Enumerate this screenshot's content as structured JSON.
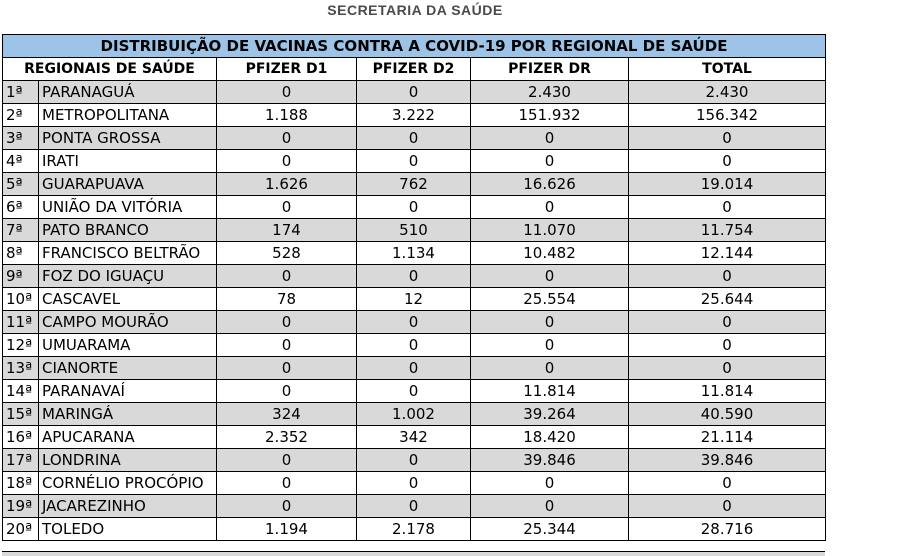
{
  "header": {
    "org": "SECRETARIA DA SAÚDE"
  },
  "table": {
    "title": "DISTRIBUIÇÃO DE VACINAS CONTRA A COVID-19 POR REGIONAL DE SAÚDE",
    "columns": [
      "REGIONAIS DE SAÚDE",
      "PFIZER D1",
      "PFIZER D2",
      "PFIZER DR",
      "TOTAL"
    ],
    "rows": [
      {
        "ord": "1ª",
        "name": "PARANAGUÁ",
        "d1": "0",
        "d2": "0",
        "dr": "2.430",
        "total": "2.430"
      },
      {
        "ord": "2ª",
        "name": "METROPOLITANA",
        "d1": "1.188",
        "d2": "3.222",
        "dr": "151.932",
        "total": "156.342"
      },
      {
        "ord": "3ª",
        "name": "PONTA GROSSA",
        "d1": "0",
        "d2": "0",
        "dr": "0",
        "total": "0"
      },
      {
        "ord": "4ª",
        "name": "IRATI",
        "d1": "0",
        "d2": "0",
        "dr": "0",
        "total": "0"
      },
      {
        "ord": "5ª",
        "name": "GUARAPUAVA",
        "d1": "1.626",
        "d2": "762",
        "dr": "16.626",
        "total": "19.014"
      },
      {
        "ord": "6ª",
        "name": "UNIÃO DA VITÓRIA",
        "d1": "0",
        "d2": "0",
        "dr": "0",
        "total": "0"
      },
      {
        "ord": "7ª",
        "name": "PATO BRANCO",
        "d1": "174",
        "d2": "510",
        "dr": "11.070",
        "total": "11.754"
      },
      {
        "ord": "8ª",
        "name": "FRANCISCO BELTRÃO",
        "d1": "528",
        "d2": "1.134",
        "dr": "10.482",
        "total": "12.144"
      },
      {
        "ord": "9ª",
        "name": "FOZ DO IGUAÇU",
        "d1": "0",
        "d2": "0",
        "dr": "0",
        "total": "0"
      },
      {
        "ord": "10ª",
        "name": "CASCAVEL",
        "d1": "78",
        "d2": "12",
        "dr": "25.554",
        "total": "25.644"
      },
      {
        "ord": "11ª",
        "name": "CAMPO MOURÃO",
        "d1": "0",
        "d2": "0",
        "dr": "0",
        "total": "0"
      },
      {
        "ord": "12ª",
        "name": "UMUARAMA",
        "d1": "0",
        "d2": "0",
        "dr": "0",
        "total": "0"
      },
      {
        "ord": "13ª",
        "name": "CIANORTE",
        "d1": "0",
        "d2": "0",
        "dr": "0",
        "total": "0"
      },
      {
        "ord": "14ª",
        "name": "PARANAVAÍ",
        "d1": "0",
        "d2": "0",
        "dr": "11.814",
        "total": "11.814"
      },
      {
        "ord": "15ª",
        "name": "MARINGÁ",
        "d1": "324",
        "d2": "1.002",
        "dr": "39.264",
        "total": "40.590"
      },
      {
        "ord": "16ª",
        "name": "APUCARANA",
        "d1": "2.352",
        "d2": "342",
        "dr": "18.420",
        "total": "21.114"
      },
      {
        "ord": "17ª",
        "name": "LONDRINA",
        "d1": "0",
        "d2": "0",
        "dr": "39.846",
        "total": "39.846"
      },
      {
        "ord": "18ª",
        "name": "CORNÉLIO PROCÓPIO",
        "d1": "0",
        "d2": "0",
        "dr": "0",
        "total": "0"
      },
      {
        "ord": "19ª",
        "name": "JACAREZINHO",
        "d1": "0",
        "d2": "0",
        "dr": "0",
        "total": "0"
      },
      {
        "ord": "20ª",
        "name": "TOLEDO",
        "d1": "1.194",
        "d2": "2.178",
        "dr": "25.344",
        "total": "28.716"
      }
    ]
  },
  "colors": {
    "title_bg": "#9dc3e6",
    "shade": "#d9d9d9"
  }
}
